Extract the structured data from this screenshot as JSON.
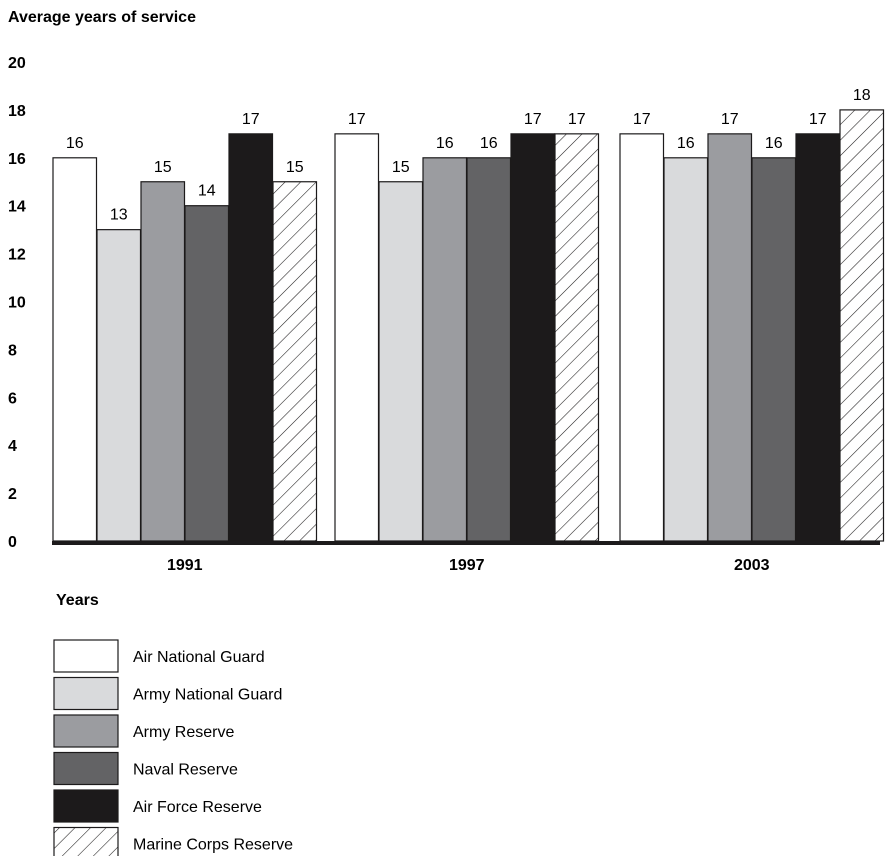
{
  "chart_data": {
    "type": "bar",
    "ylabel": "Average years of service",
    "xlabel": "Years",
    "categories": [
      "1991",
      "1997",
      "2003"
    ],
    "ylim": [
      0,
      20
    ],
    "yticks": [
      0,
      2,
      4,
      6,
      8,
      10,
      12,
      14,
      16,
      18,
      20
    ],
    "grid": false,
    "legend_position": "bottom-left",
    "series": [
      {
        "name": "Air National Guard",
        "values": [
          16,
          17,
          17
        ],
        "color": "#ffffff",
        "pattern": "solid"
      },
      {
        "name": "Army National Guard",
        "values": [
          13,
          15,
          16
        ],
        "color": "#d9dadc",
        "pattern": "solid"
      },
      {
        "name": "Army Reserve",
        "values": [
          15,
          16,
          17
        ],
        "color": "#9b9ca0",
        "pattern": "solid"
      },
      {
        "name": "Naval Reserve",
        "values": [
          14,
          16,
          16
        ],
        "color": "#636365",
        "pattern": "solid"
      },
      {
        "name": "Air Force Reserve",
        "values": [
          17,
          17,
          17
        ],
        "color": "#1c1a1b",
        "pattern": "solid"
      },
      {
        "name": "Marine Corps Reserve",
        "values": [
          15,
          17,
          18
        ],
        "color": "#ffffff",
        "pattern": "hatch"
      }
    ]
  }
}
